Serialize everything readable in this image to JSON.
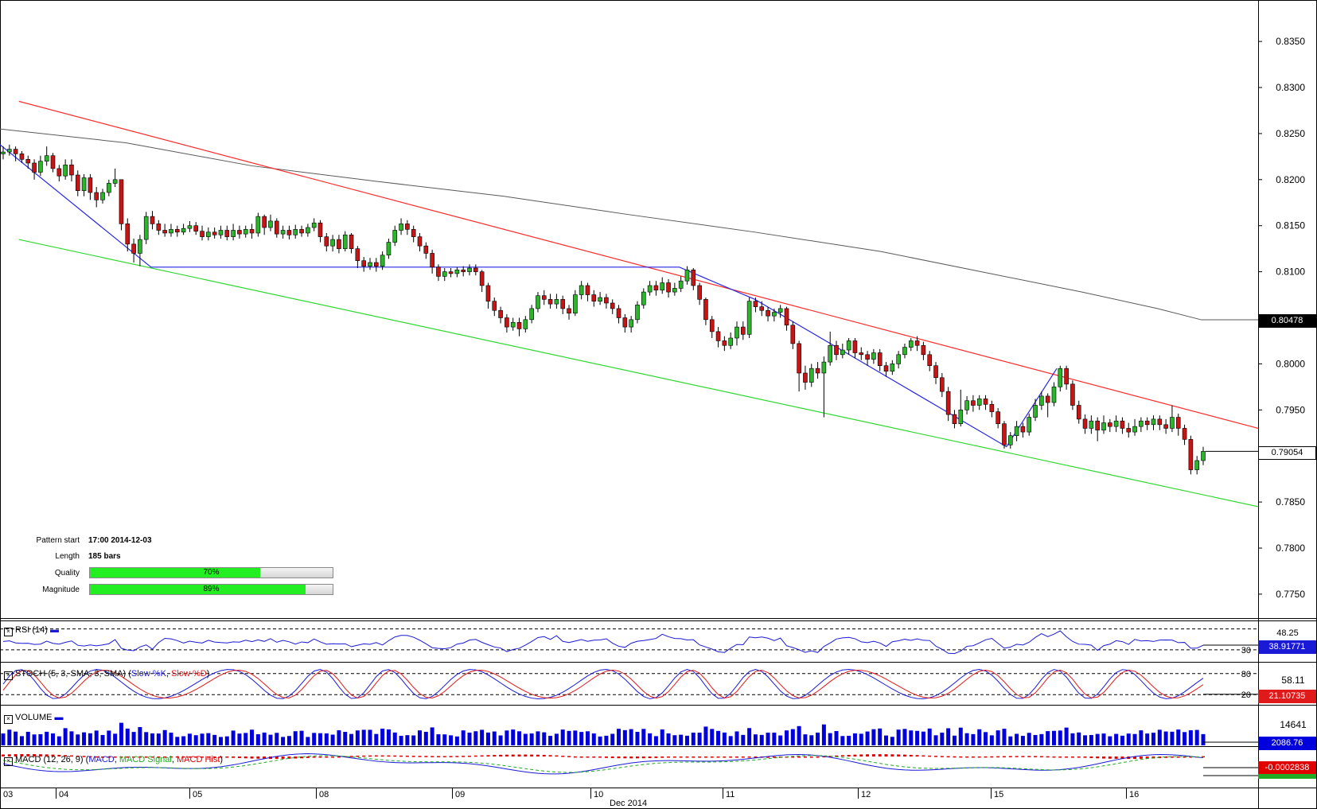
{
  "chart_data": {
    "type": "candlestick",
    "x_axis": {
      "ticks": [
        "03",
        "04",
        "05",
        "08",
        "09",
        "10",
        "11",
        "12",
        "15",
        "16"
      ],
      "label": "Dec 2014"
    },
    "y_axis": {
      "ticks": [
        0.835,
        0.83,
        0.825,
        0.82,
        0.815,
        0.81,
        0.8,
        0.795,
        0.785,
        0.78,
        0.775
      ],
      "range": [
        0.7724,
        0.8395
      ]
    },
    "price_tags": {
      "sma": "0.80478",
      "last": "0.79054"
    },
    "pattern": {
      "start_label": "Pattern start",
      "start": "17:00 2014-12-03",
      "length_label": "Length",
      "length": "185 bars",
      "quality_label": "Quality",
      "quality": "70%",
      "quality_fraction": 0.7,
      "magnitude_label": "Magnitude",
      "magnitude": "89%",
      "magnitude_fraction": 0.89
    },
    "channel": {
      "resistance": [
        [
          0.0,
          0.829
        ],
        [
          1.0,
          0.793
        ]
      ],
      "support": [
        [
          0.0,
          0.8135
        ],
        [
          1.0,
          0.7845
        ]
      ]
    },
    "zigzag": [
      [
        0.0,
        0.8238
      ],
      [
        0.12,
        0.8105
      ],
      [
        0.54,
        0.8105
      ],
      [
        0.6,
        0.807
      ],
      [
        0.8,
        0.791
      ],
      [
        0.84,
        0.7995
      ]
    ],
    "sma": [
      [
        0.0,
        0.8255
      ],
      [
        0.1,
        0.824
      ],
      [
        0.2,
        0.8215
      ],
      [
        0.3,
        0.8198
      ],
      [
        0.4,
        0.8182
      ],
      [
        0.5,
        0.8162
      ],
      [
        0.6,
        0.8143
      ],
      [
        0.7,
        0.8122
      ],
      [
        0.78,
        0.81
      ],
      [
        0.86,
        0.8078
      ],
      [
        0.92,
        0.806
      ],
      [
        0.955,
        0.80478
      ],
      [
        1.0,
        0.80478
      ]
    ],
    "candles": [
      [
        0.8228,
        0.823,
        0.8236,
        0.8222
      ],
      [
        0.823,
        0.8233,
        0.8238,
        0.8226
      ],
      [
        0.8233,
        0.8228,
        0.8236,
        0.822
      ],
      [
        0.8228,
        0.8222,
        0.8231,
        0.8218
      ],
      [
        0.8222,
        0.8218,
        0.8226,
        0.8212
      ],
      [
        0.8218,
        0.8208,
        0.8222,
        0.82
      ],
      [
        0.8208,
        0.822,
        0.8226,
        0.8204
      ],
      [
        0.822,
        0.8226,
        0.8236,
        0.8215
      ],
      [
        0.8226,
        0.8212,
        0.8229,
        0.8208
      ],
      [
        0.8212,
        0.8204,
        0.8216,
        0.8198
      ],
      [
        0.8204,
        0.8216,
        0.8222,
        0.82
      ],
      [
        0.8216,
        0.8205,
        0.8222,
        0.8198
      ],
      [
        0.8205,
        0.8188,
        0.821,
        0.8182
      ],
      [
        0.8188,
        0.8202,
        0.8206,
        0.8182
      ],
      [
        0.8202,
        0.8186,
        0.8206,
        0.8178
      ],
      [
        0.8186,
        0.8178,
        0.8192,
        0.817
      ],
      [
        0.8178,
        0.8186,
        0.819,
        0.8174
      ],
      [
        0.8186,
        0.8196,
        0.82,
        0.8182
      ],
      [
        0.8196,
        0.82,
        0.8212,
        0.8192
      ],
      [
        0.82,
        0.8152,
        0.82,
        0.8145
      ],
      [
        0.8152,
        0.813,
        0.8158,
        0.8122
      ],
      [
        0.813,
        0.812,
        0.8136,
        0.811
      ],
      [
        0.812,
        0.8135,
        0.814,
        0.8106
      ],
      [
        0.8135,
        0.816,
        0.8165,
        0.813
      ],
      [
        0.816,
        0.8152,
        0.8166,
        0.8146
      ],
      [
        0.8152,
        0.8145,
        0.8156,
        0.814
      ],
      [
        0.8145,
        0.8142,
        0.8152,
        0.8138
      ],
      [
        0.8142,
        0.8146,
        0.8152,
        0.8138
      ],
      [
        0.8146,
        0.8143,
        0.815,
        0.8138
      ],
      [
        0.8143,
        0.8147,
        0.8152,
        0.814
      ],
      [
        0.8147,
        0.815,
        0.8155,
        0.8143
      ],
      [
        0.815,
        0.8144,
        0.8154,
        0.814
      ],
      [
        0.8144,
        0.8138,
        0.815,
        0.8134
      ],
      [
        0.8138,
        0.8143,
        0.8148,
        0.8134
      ],
      [
        0.8143,
        0.814,
        0.8148,
        0.8136
      ],
      [
        0.814,
        0.8145,
        0.815,
        0.8136
      ],
      [
        0.8145,
        0.8138,
        0.815,
        0.8134
      ],
      [
        0.8138,
        0.8145,
        0.8152,
        0.8134
      ],
      [
        0.8145,
        0.8141,
        0.815,
        0.8136
      ],
      [
        0.8141,
        0.8146,
        0.815,
        0.8137
      ],
      [
        0.8146,
        0.8142,
        0.8152,
        0.8136
      ],
      [
        0.8142,
        0.816,
        0.8164,
        0.8138
      ],
      [
        0.816,
        0.8148,
        0.8162,
        0.814
      ],
      [
        0.8148,
        0.8155,
        0.8162,
        0.8144
      ],
      [
        0.8155,
        0.8141,
        0.8158,
        0.8137
      ],
      [
        0.8141,
        0.8145,
        0.815,
        0.8136
      ],
      [
        0.8145,
        0.814,
        0.815,
        0.8135
      ],
      [
        0.814,
        0.8146,
        0.8151,
        0.8136
      ],
      [
        0.8146,
        0.8142,
        0.815,
        0.8138
      ],
      [
        0.8142,
        0.8148,
        0.8152,
        0.8138
      ],
      [
        0.8148,
        0.8153,
        0.8158,
        0.8144
      ],
      [
        0.8153,
        0.8138,
        0.8156,
        0.8132
      ],
      [
        0.8138,
        0.8128,
        0.8142,
        0.8122
      ],
      [
        0.8128,
        0.8135,
        0.814,
        0.8122
      ],
      [
        0.8135,
        0.8125,
        0.814,
        0.812
      ],
      [
        0.8125,
        0.814,
        0.8144,
        0.8122
      ],
      [
        0.814,
        0.8125,
        0.8142,
        0.812
      ],
      [
        0.8125,
        0.8112,
        0.8128,
        0.8104
      ],
      [
        0.8112,
        0.8106,
        0.8116,
        0.81
      ],
      [
        0.8106,
        0.811,
        0.8115,
        0.8102
      ],
      [
        0.811,
        0.8106,
        0.8115,
        0.81
      ],
      [
        0.8106,
        0.8118,
        0.8122,
        0.8102
      ],
      [
        0.8118,
        0.8132,
        0.8136,
        0.8114
      ],
      [
        0.8132,
        0.8145,
        0.815,
        0.8128
      ],
      [
        0.8145,
        0.8152,
        0.8158,
        0.814
      ],
      [
        0.8152,
        0.8146,
        0.8156,
        0.814
      ],
      [
        0.8146,
        0.8138,
        0.815,
        0.8132
      ],
      [
        0.8138,
        0.8128,
        0.8142,
        0.8122
      ],
      [
        0.8128,
        0.812,
        0.8132,
        0.8114
      ],
      [
        0.812,
        0.8105,
        0.8124,
        0.8098
      ],
      [
        0.8105,
        0.8095,
        0.8108,
        0.809
      ],
      [
        0.8095,
        0.81,
        0.8104,
        0.809
      ],
      [
        0.81,
        0.8098,
        0.8104,
        0.8094
      ],
      [
        0.8098,
        0.8102,
        0.8105,
        0.8094
      ],
      [
        0.8102,
        0.81,
        0.8106,
        0.8095
      ],
      [
        0.81,
        0.8104,
        0.8108,
        0.8096
      ],
      [
        0.8104,
        0.81,
        0.8108,
        0.8096
      ],
      [
        0.81,
        0.8085,
        0.8102,
        0.8078
      ],
      [
        0.8085,
        0.8068,
        0.8088,
        0.806
      ],
      [
        0.8068,
        0.8058,
        0.8072,
        0.8052
      ],
      [
        0.8058,
        0.805,
        0.8062,
        0.8044
      ],
      [
        0.805,
        0.804,
        0.8054,
        0.8034
      ],
      [
        0.804,
        0.8045,
        0.805,
        0.8036
      ],
      [
        0.8045,
        0.8038,
        0.805,
        0.803
      ],
      [
        0.8038,
        0.8048,
        0.8052,
        0.8034
      ],
      [
        0.8048,
        0.806,
        0.8064,
        0.8044
      ],
      [
        0.806,
        0.8074,
        0.8078,
        0.8056
      ],
      [
        0.8074,
        0.807,
        0.808,
        0.8064
      ],
      [
        0.807,
        0.8065,
        0.8076,
        0.806
      ],
      [
        0.8065,
        0.807,
        0.8076,
        0.806
      ],
      [
        0.807,
        0.806,
        0.8074,
        0.8054
      ],
      [
        0.806,
        0.8055,
        0.8064,
        0.8048
      ],
      [
        0.8055,
        0.8075,
        0.808,
        0.8052
      ],
      [
        0.8075,
        0.8085,
        0.809,
        0.807
      ],
      [
        0.8085,
        0.8075,
        0.8088,
        0.8068
      ],
      [
        0.8075,
        0.8068,
        0.808,
        0.8062
      ],
      [
        0.8068,
        0.8072,
        0.8078,
        0.8064
      ],
      [
        0.8072,
        0.8066,
        0.8076,
        0.806
      ],
      [
        0.8066,
        0.806,
        0.807,
        0.8054
      ],
      [
        0.806,
        0.805,
        0.8064,
        0.8044
      ],
      [
        0.805,
        0.804,
        0.8054,
        0.8034
      ],
      [
        0.804,
        0.8048,
        0.8052,
        0.8034
      ],
      [
        0.8048,
        0.8064,
        0.8068,
        0.8044
      ],
      [
        0.8064,
        0.8078,
        0.8082,
        0.806
      ],
      [
        0.8078,
        0.8085,
        0.809,
        0.8074
      ],
      [
        0.8085,
        0.808,
        0.809,
        0.8074
      ],
      [
        0.808,
        0.8088,
        0.8094,
        0.8076
      ],
      [
        0.8088,
        0.8078,
        0.8092,
        0.8072
      ],
      [
        0.8078,
        0.8082,
        0.8088,
        0.8074
      ],
      [
        0.8082,
        0.809,
        0.8095,
        0.8078
      ],
      [
        0.809,
        0.8102,
        0.8106,
        0.8086
      ],
      [
        0.8102,
        0.8085,
        0.8104,
        0.808
      ],
      [
        0.8085,
        0.807,
        0.8088,
        0.8064
      ],
      [
        0.807,
        0.8048,
        0.8072,
        0.8042
      ],
      [
        0.8048,
        0.8035,
        0.8052,
        0.8028
      ],
      [
        0.8035,
        0.8025,
        0.804,
        0.8018
      ],
      [
        0.8025,
        0.802,
        0.803,
        0.8014
      ],
      [
        0.802,
        0.8028,
        0.8034,
        0.8016
      ],
      [
        0.8028,
        0.804,
        0.8046,
        0.802
      ],
      [
        0.804,
        0.8032,
        0.8046,
        0.8026
      ],
      [
        0.8032,
        0.8068,
        0.8072,
        0.8028
      ],
      [
        0.8068,
        0.8062,
        0.8072,
        0.8056
      ],
      [
        0.8062,
        0.8058,
        0.8068,
        0.8052
      ],
      [
        0.8058,
        0.8052,
        0.8062,
        0.8046
      ],
      [
        0.8052,
        0.8056,
        0.806,
        0.8046
      ],
      [
        0.8056,
        0.806,
        0.8064,
        0.805
      ],
      [
        0.806,
        0.8042,
        0.8062,
        0.8036
      ],
      [
        0.8042,
        0.8022,
        0.8046,
        0.8016
      ],
      [
        0.8022,
        0.799,
        0.8025,
        0.797
      ],
      [
        0.799,
        0.798,
        0.7998,
        0.7972
      ],
      [
        0.798,
        0.7995,
        0.8,
        0.7975
      ],
      [
        0.7995,
        0.799,
        0.8002,
        0.7984
      ],
      [
        0.799,
        0.8002,
        0.8008,
        0.7942
      ],
      [
        0.8002,
        0.802,
        0.8035,
        0.7998
      ],
      [
        0.802,
        0.801,
        0.8025,
        0.8004
      ],
      [
        0.801,
        0.8015,
        0.8022,
        0.8006
      ],
      [
        0.8015,
        0.8025,
        0.8028,
        0.801
      ],
      [
        0.8025,
        0.8012,
        0.8028,
        0.8006
      ],
      [
        0.8012,
        0.801,
        0.8018,
        0.8004
      ],
      [
        0.801,
        0.8005,
        0.8014,
        0.7998
      ],
      [
        0.8005,
        0.8012,
        0.8016,
        0.8
      ],
      [
        0.8012,
        0.7998,
        0.8016,
        0.7992
      ],
      [
        0.7998,
        0.7992,
        0.8002,
        0.7986
      ],
      [
        0.7992,
        0.8,
        0.8004,
        0.7988
      ],
      [
        0.8,
        0.801,
        0.8014,
        0.7995
      ],
      [
        0.801,
        0.8018,
        0.8022,
        0.8006
      ],
      [
        0.8018,
        0.8025,
        0.8028,
        0.8014
      ],
      [
        0.8025,
        0.802,
        0.803,
        0.8014
      ],
      [
        0.802,
        0.801,
        0.8024,
        0.8004
      ],
      [
        0.801,
        0.7998,
        0.8014,
        0.7992
      ],
      [
        0.7998,
        0.7985,
        0.8002,
        0.7978
      ],
      [
        0.7985,
        0.797,
        0.799,
        0.7964
      ],
      [
        0.797,
        0.7945,
        0.7975,
        0.7938
      ],
      [
        0.7945,
        0.7935,
        0.795,
        0.793
      ],
      [
        0.7935,
        0.795,
        0.7972,
        0.7932
      ],
      [
        0.795,
        0.796,
        0.7965,
        0.7945
      ],
      [
        0.796,
        0.7955,
        0.7966,
        0.7948
      ],
      [
        0.7955,
        0.7962,
        0.7966,
        0.795
      ],
      [
        0.7962,
        0.7956,
        0.7966,
        0.795
      ],
      [
        0.7956,
        0.7948,
        0.796,
        0.7942
      ],
      [
        0.7948,
        0.7935,
        0.7952,
        0.793
      ],
      [
        0.7935,
        0.7912,
        0.7938,
        0.7908
      ],
      [
        0.7912,
        0.7922,
        0.7926,
        0.7908
      ],
      [
        0.7922,
        0.7932,
        0.7938,
        0.7916
      ],
      [
        0.7932,
        0.7926,
        0.7936,
        0.792
      ],
      [
        0.7926,
        0.7942,
        0.7946,
        0.7922
      ],
      [
        0.7942,
        0.7955,
        0.7962,
        0.7938
      ],
      [
        0.7955,
        0.7965,
        0.797,
        0.795
      ],
      [
        0.7965,
        0.7958,
        0.7968,
        0.7942
      ],
      [
        0.7958,
        0.7975,
        0.798,
        0.7954
      ],
      [
        0.7975,
        0.7995,
        0.7998,
        0.797
      ],
      [
        0.7995,
        0.7978,
        0.7998,
        0.7972
      ],
      [
        0.7978,
        0.7955,
        0.7982,
        0.795
      ],
      [
        0.7955,
        0.794,
        0.796,
        0.7935
      ],
      [
        0.794,
        0.793,
        0.7945,
        0.7924
      ],
      [
        0.793,
        0.7938,
        0.7944,
        0.7924
      ],
      [
        0.7938,
        0.7928,
        0.7942,
        0.7916
      ],
      [
        0.7928,
        0.7936,
        0.7944,
        0.7924
      ],
      [
        0.7936,
        0.7932,
        0.794,
        0.7926
      ],
      [
        0.7932,
        0.7938,
        0.7944,
        0.7926
      ],
      [
        0.7938,
        0.793,
        0.7942,
        0.7924
      ],
      [
        0.793,
        0.7926,
        0.7936,
        0.792
      ],
      [
        0.7926,
        0.7932,
        0.794,
        0.7922
      ],
      [
        0.7932,
        0.7938,
        0.7942,
        0.7926
      ],
      [
        0.7938,
        0.7934,
        0.7942,
        0.7928
      ],
      [
        0.7934,
        0.794,
        0.7944,
        0.7928
      ],
      [
        0.794,
        0.7934,
        0.7944,
        0.7928
      ],
      [
        0.7934,
        0.793,
        0.794,
        0.7924
      ],
      [
        0.793,
        0.7942,
        0.7955,
        0.7926
      ],
      [
        0.7942,
        0.793,
        0.7946,
        0.7922
      ],
      [
        0.793,
        0.7918,
        0.7934,
        0.7912
      ],
      [
        0.7918,
        0.7885,
        0.7922,
        0.788
      ],
      [
        0.7885,
        0.7895,
        0.79,
        0.788
      ],
      [
        0.7895,
        0.7905,
        0.791,
        0.789
      ]
    ],
    "indicators": {
      "rsi": {
        "label": "RSI (14)",
        "level": "30",
        "level_value": 30,
        "top_value": "48.25",
        "value": "38.91771",
        "range": [
          10,
          80
        ]
      },
      "stoch": {
        "label": "STOCH (5, 3, SMA, 3, SMA)",
        "k_label": "Slow %K",
        "d_label": "Slow %D",
        "upper": "80",
        "lower": "20",
        "mid_value": "58.11",
        "value": "21.10735"
      },
      "volume": {
        "label": "VOLUME",
        "top_value": "14641",
        "value": "2086.76"
      },
      "macd": {
        "label": "MACD (12, 26, 9)",
        "macd_label": "MACD",
        "signal_label": "MACD Signal",
        "hist_label": "MACD Hist",
        "value": "-0.0002838"
      }
    },
    "colors": {
      "bull": "#2ab52a",
      "bear": "#c81414",
      "resistance": "#ff2a2a",
      "support": "#2ed82e",
      "zigzag": "#2727e6",
      "sma": "#595959",
      "rsi": "#1a1ad6",
      "stoch_k": "#1a1ad6",
      "stoch_d": "#e01a1a",
      "volume": "#0000dd",
      "macd": "#1a1ad6",
      "signal": "#22aa22",
      "hist": "#e00000"
    }
  }
}
